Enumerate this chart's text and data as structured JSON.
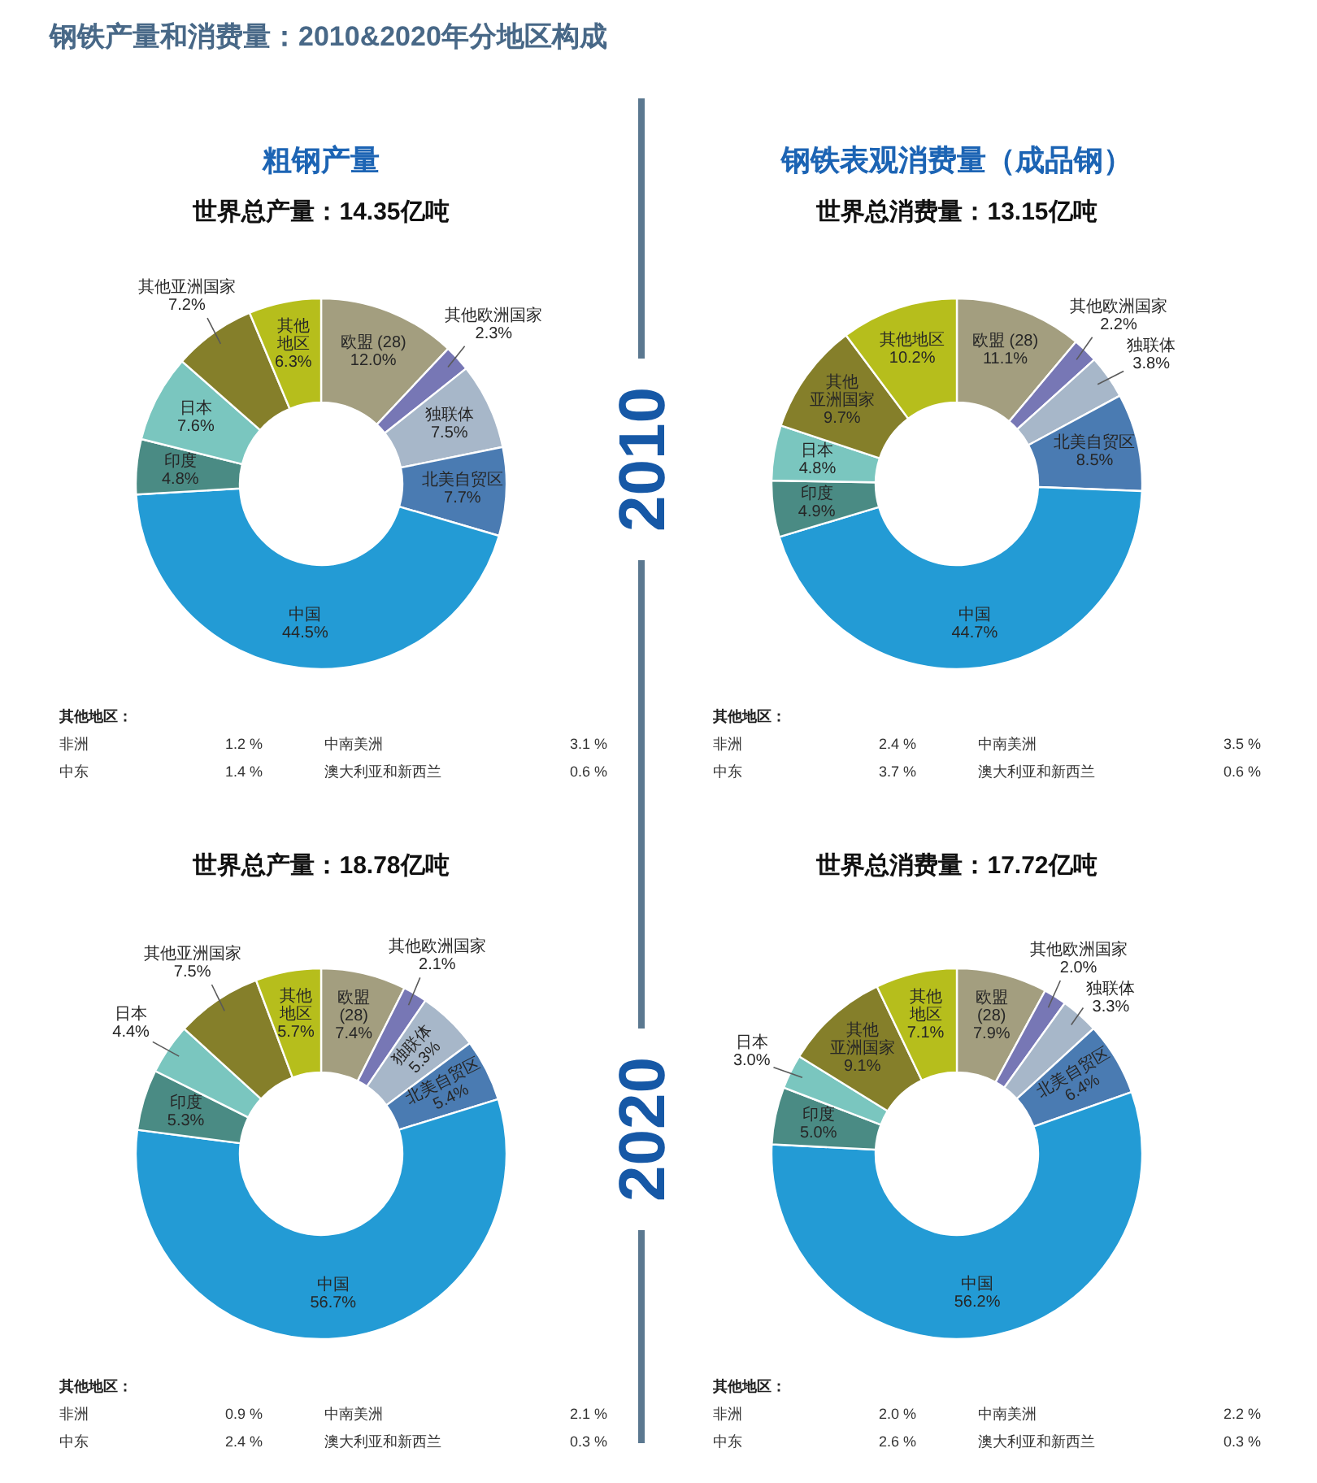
{
  "chart_data": [
    {
      "type": "other",
      "title": "钢铁产量和消费量：2010&2020年分地区构成",
      "annotations": [
        "2010",
        "2020"
      ]
    },
    {
      "type": "donut",
      "title": "粗钢产量",
      "subtitle": "世界总产量：14.35亿吨",
      "categories": [
        "欧盟 (28)",
        "其他欧洲国家",
        "独联体",
        "北美自贸区",
        "中国",
        "印度",
        "日本",
        "其他亚洲国家",
        "其他地区"
      ],
      "values": [
        12.0,
        2.3,
        7.5,
        7.7,
        44.5,
        4.8,
        7.6,
        7.2,
        6.3
      ],
      "value_labels": [
        "12.0%",
        "2.3%",
        "7.5%",
        "7.7%",
        "44.5%",
        "4.8%",
        "7.6%",
        "7.2%",
        "6.3%"
      ],
      "colors": [
        "#a39e7f",
        "#7777b5",
        "#a7b7c9",
        "#4a7bb2",
        "#239bd5",
        "#4a8b84",
        "#7ac6bf",
        "#857f2a",
        "#b6be1c"
      ],
      "annotations": [
        "其他地区：",
        "非洲",
        "1.2 %",
        "中南美洲",
        "3.1 %",
        "中东",
        "1.4 %",
        "澳大利亚和新西兰",
        "0.6 %"
      ]
    },
    {
      "type": "donut",
      "title": "钢铁表观消费量（成品钢）",
      "subtitle": "世界总消费量：13.15亿吨",
      "categories": [
        "欧盟 (28)",
        "其他欧洲国家",
        "独联体",
        "北美自贸区",
        "中国",
        "印度",
        "日本",
        "其他亚洲国家",
        "其他地区"
      ],
      "values": [
        11.1,
        2.2,
        3.8,
        8.5,
        44.7,
        4.9,
        4.8,
        9.7,
        10.2
      ],
      "value_labels": [
        "11.1%",
        "2.2%",
        "3.8%",
        "8.5%",
        "44.7%",
        "4.9%",
        "4.8%",
        "9.7%",
        "10.2%"
      ],
      "colors": [
        "#a39e7f",
        "#7777b5",
        "#a7b7c9",
        "#4a7bb2",
        "#239bd5",
        "#4a8b84",
        "#7ac6bf",
        "#857f2a",
        "#b6be1c"
      ],
      "annotations": [
        "其他地区：",
        "非洲",
        "2.4 %",
        "中南美洲",
        "3.5 %",
        "中东",
        "3.7 %",
        "澳大利亚和新西兰",
        "0.6 %"
      ]
    },
    {
      "type": "donut",
      "subtitle": "世界总产量：18.78亿吨",
      "categories": [
        "欧盟 (28)",
        "其他欧洲国家",
        "独联体",
        "北美自贸区",
        "中国",
        "印度",
        "日本",
        "其他亚洲国家",
        "其他地区"
      ],
      "values": [
        7.4,
        2.1,
        5.3,
        5.4,
        56.7,
        5.3,
        4.4,
        7.5,
        5.7
      ],
      "value_labels": [
        "7.4%",
        "2.1%",
        "5.3%",
        "5.4%",
        "56.7%",
        "5.3%",
        "4.4%",
        "7.5%",
        "5.7%"
      ],
      "colors": [
        "#a39e7f",
        "#7777b5",
        "#a7b7c9",
        "#4a7bb2",
        "#239bd5",
        "#4a8b84",
        "#7ac6bf",
        "#857f2a",
        "#b6be1c"
      ],
      "annotations": [
        "其他地区：",
        "非洲",
        "0.9 %",
        "中南美洲",
        "2.1 %",
        "中东",
        "2.4 %",
        "澳大利亚和新西兰",
        "0.3 %"
      ]
    },
    {
      "type": "donut",
      "subtitle": "世界总消费量：17.72亿吨",
      "categories": [
        "欧盟 (28)",
        "其他欧洲国家",
        "独联体",
        "北美自贸区",
        "中国",
        "印度",
        "日本",
        "其他亚洲国家",
        "其他地区"
      ],
      "values": [
        7.9,
        2.0,
        3.3,
        6.4,
        56.2,
        5.0,
        3.0,
        9.1,
        7.1
      ],
      "value_labels": [
        "7.9%",
        "2.0%",
        "3.3%",
        "6.4%",
        "56.2%",
        "5.0%",
        "3.0%",
        "9.1%",
        "7.1%"
      ],
      "colors": [
        "#a39e7f",
        "#7777b5",
        "#a7b7c9",
        "#4a7bb2",
        "#239bd5",
        "#4a8b84",
        "#7ac6bf",
        "#857f2a",
        "#b6be1c"
      ],
      "annotations": [
        "其他地区：",
        "非洲",
        "2.0 %",
        "中南美洲",
        "2.2 %",
        "中东",
        "2.6 %",
        "澳大利亚和新西兰",
        "0.3 %"
      ]
    }
  ]
}
